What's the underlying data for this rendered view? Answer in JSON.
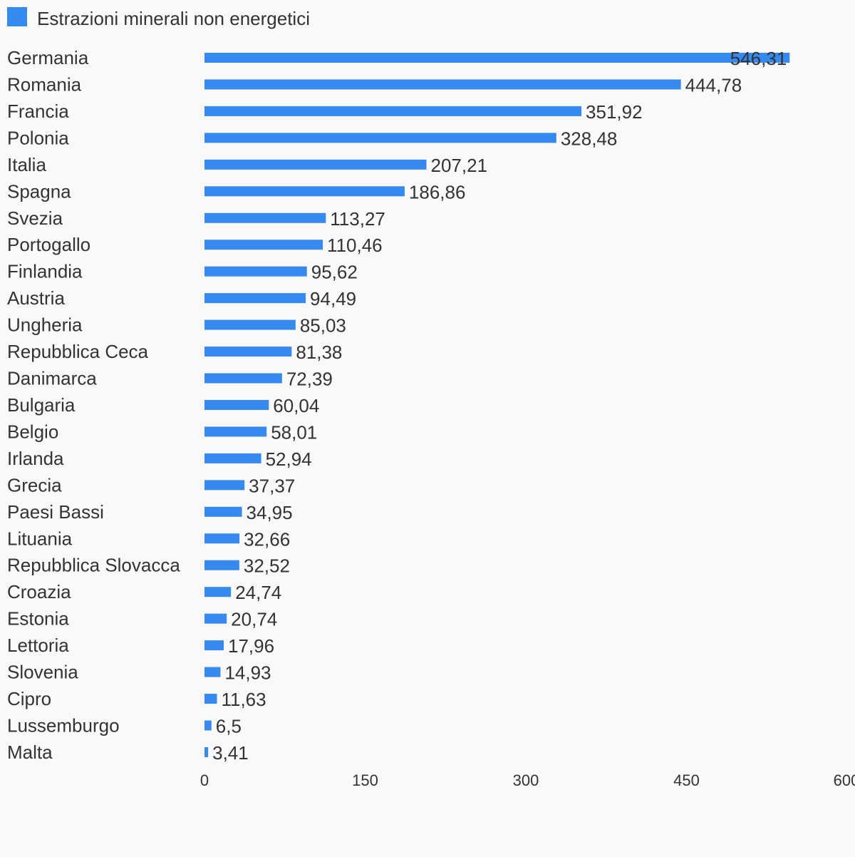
{
  "chart_data": {
    "type": "bar",
    "orientation": "horizontal",
    "series": [
      {
        "name": "Estrazioni minerali non energetici",
        "color": "#3689ee",
        "values": [
          546.31,
          444.78,
          351.92,
          328.48,
          207.21,
          186.86,
          113.27,
          110.46,
          95.62,
          94.49,
          85.03,
          81.38,
          72.39,
          60.04,
          58.01,
          52.94,
          37.37,
          34.95,
          32.66,
          32.52,
          24.74,
          20.74,
          17.96,
          14.93,
          11.63,
          6.5,
          3.41
        ],
        "value_labels": [
          "546,31",
          "444,78",
          "351,92",
          "328,48",
          "207,21",
          "186,86",
          "113,27",
          "110,46",
          "95,62",
          "94,49",
          "85,03",
          "81,38",
          "72,39",
          "60,04",
          "58,01",
          "52,94",
          "37,37",
          "34,95",
          "32,66",
          "32,52",
          "24,74",
          "20,74",
          "17,96",
          "14,93",
          "11,63",
          "6,5",
          "3,41"
        ]
      }
    ],
    "categories": [
      "Germania",
      "Romania",
      "Francia",
      "Polonia",
      "Italia",
      "Spagna",
      "Svezia",
      "Portogallo",
      "Finlandia",
      "Austria",
      "Ungheria",
      "Repubblica Ceca",
      "Danimarca",
      "Bulgaria",
      "Belgio",
      "Irlanda",
      "Grecia",
      "Paesi Bassi",
      "Lituania",
      "Repubblica Slovacca",
      "Croazia",
      "Estonia",
      "Lettoria",
      "Slovenia",
      "Cipro",
      "Lussemburgo",
      "Malta"
    ],
    "xlim": [
      0,
      600
    ],
    "ticks": [
      0,
      150,
      300,
      450,
      600
    ],
    "tick_labels": [
      "0",
      "150",
      "300",
      "450",
      "600"
    ],
    "legend_position": "top-left",
    "grid": false
  }
}
